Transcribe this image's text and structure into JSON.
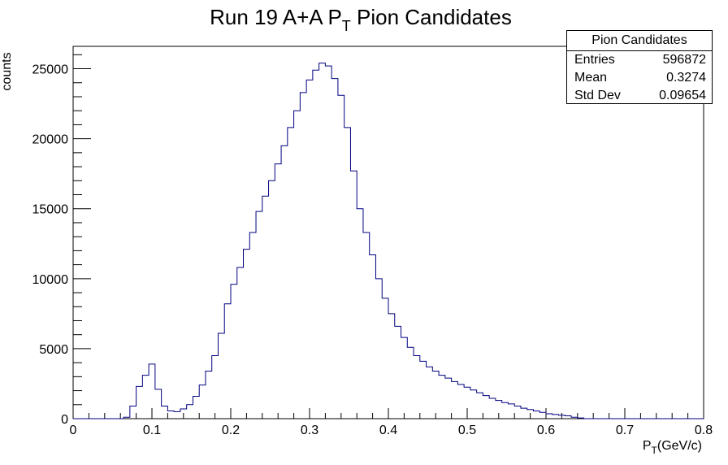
{
  "chart_data": {
    "type": "bar",
    "title_main": "Run 19 A+A P",
    "title_sub": "T",
    "title_rest": " Pion Candidates",
    "xlabel_main": "P",
    "xlabel_sub": "T",
    "xlabel_rest": "(GeV/c)",
    "ylabel": "counts",
    "xlim": [
      0,
      0.8
    ],
    "ylim": [
      0,
      26600
    ],
    "x_ticks": [
      0,
      0.1,
      0.2,
      0.3,
      0.4,
      0.5,
      0.6,
      0.7,
      0.8
    ],
    "x_tick_labels": [
      "0",
      "0.1",
      "0.2",
      "0.3",
      "0.4",
      "0.5",
      "0.6",
      "0.7",
      "0.8"
    ],
    "y_ticks": [
      0,
      5000,
      10000,
      15000,
      20000,
      25000
    ],
    "y_tick_labels": [
      "0",
      "5000",
      "10000",
      "15000",
      "20000",
      "25000"
    ],
    "bin_width": 0.008,
    "bin_start": 0,
    "values": [
      0,
      0,
      0,
      0,
      0,
      0,
      0,
      0,
      100,
      900,
      2300,
      3100,
      3900,
      2100,
      900,
      550,
      500,
      700,
      1000,
      1600,
      2400,
      3400,
      4500,
      6100,
      8200,
      9600,
      10800,
      12100,
      13300,
      14800,
      15900,
      17000,
      18200,
      19500,
      20800,
      22000,
      23300,
      24200,
      24900,
      25400,
      25200,
      24300,
      23100,
      20800,
      17700,
      15000,
      13300,
      11700,
      10000,
      8600,
      7500,
      6600,
      5800,
      5100,
      4500,
      4100,
      3700,
      3400,
      3100,
      2900,
      2650,
      2450,
      2250,
      2050,
      1850,
      1650,
      1450,
      1300,
      1150,
      1050,
      900,
      750,
      650,
      550,
      450,
      350,
      300,
      250,
      200,
      100,
      50,
      0,
      0,
      0,
      0,
      0,
      0,
      0,
      0,
      0,
      0,
      0,
      0,
      0,
      0,
      0,
      0,
      0,
      0,
      0
    ],
    "line_color": "#000080",
    "grid": false,
    "legend": "none"
  },
  "stats": {
    "title": "Pion Candidates",
    "rows": [
      {
        "label": "Entries",
        "value": "596872"
      },
      {
        "label": "Mean",
        "value": "0.3274"
      },
      {
        "label": "Std Dev",
        "value": "0.09654"
      }
    ]
  }
}
